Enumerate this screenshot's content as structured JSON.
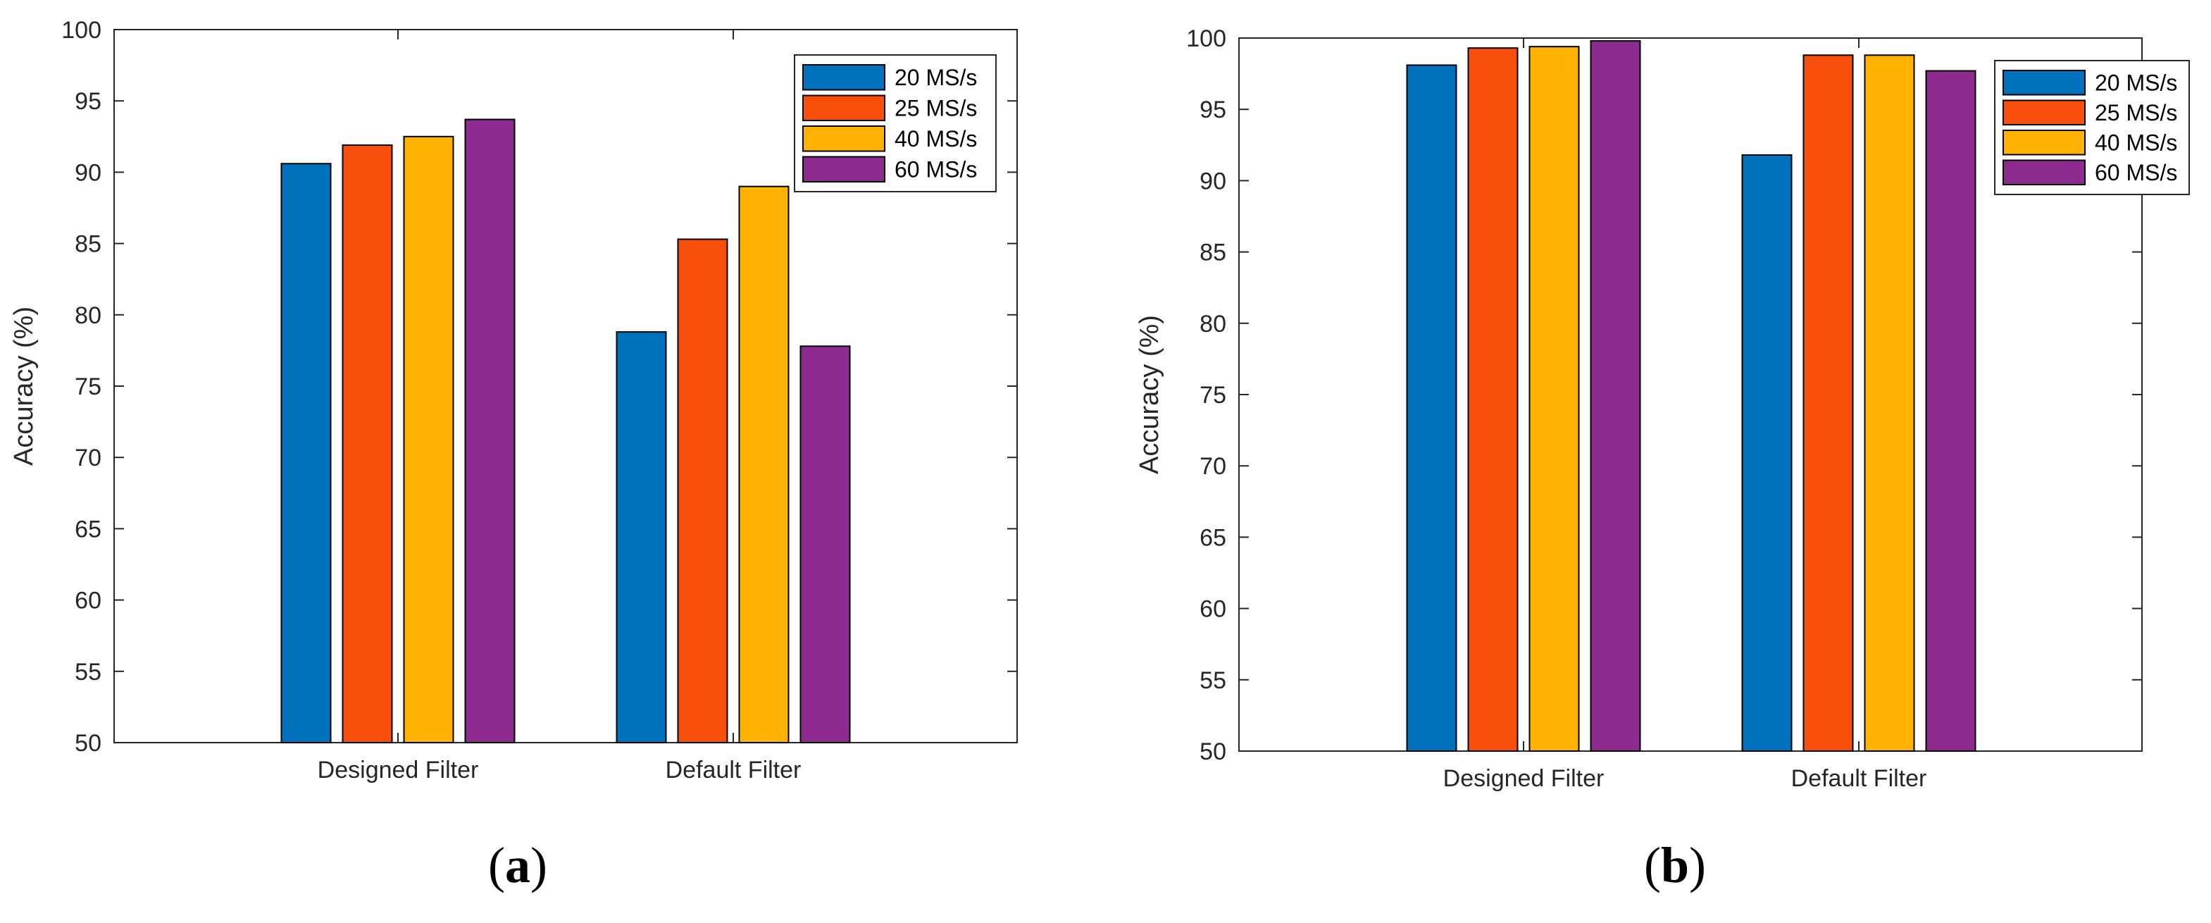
{
  "chart_data": [
    {
      "type": "bar",
      "panel_label": "a",
      "categories": [
        "Designed Filter",
        "Default Filter"
      ],
      "ylabel": "Accuracy (%)",
      "ylim": [
        50,
        100
      ],
      "yticks": [
        50,
        55,
        60,
        65,
        70,
        75,
        80,
        85,
        90,
        95,
        100
      ],
      "legend_position": "top-right",
      "grid": false,
      "series": [
        {
          "name": "20 MS/s",
          "color": "#0072BD",
          "values": [
            90.6,
            78.8
          ]
        },
        {
          "name": "25 MS/s",
          "color": "#F94F0C",
          "values": [
            91.9,
            85.3
          ]
        },
        {
          "name": "40 MS/s",
          "color": "#FFB200",
          "values": [
            92.5,
            89.0
          ]
        },
        {
          "name": "60 MS/s",
          "color": "#8E2B8F",
          "values": [
            93.7,
            77.8
          ]
        }
      ]
    },
    {
      "type": "bar",
      "panel_label": "b",
      "categories": [
        "Designed Filter",
        "Default Filter"
      ],
      "ylabel": "Accuracy (%)",
      "ylim": [
        50,
        100
      ],
      "yticks": [
        50,
        55,
        60,
        65,
        70,
        75,
        80,
        85,
        90,
        95,
        100
      ],
      "legend_position": "top-right",
      "grid": false,
      "series": [
        {
          "name": "20 MS/s",
          "color": "#0072BD",
          "values": [
            98.1,
            91.8
          ]
        },
        {
          "name": "25 MS/s",
          "color": "#F94F0C",
          "values": [
            99.3,
            98.8
          ]
        },
        {
          "name": "40 MS/s",
          "color": "#FFB200",
          "values": [
            99.4,
            98.8
          ]
        },
        {
          "name": "60 MS/s",
          "color": "#8E2B8F",
          "values": [
            99.8,
            97.7
          ]
        }
      ]
    }
  ]
}
